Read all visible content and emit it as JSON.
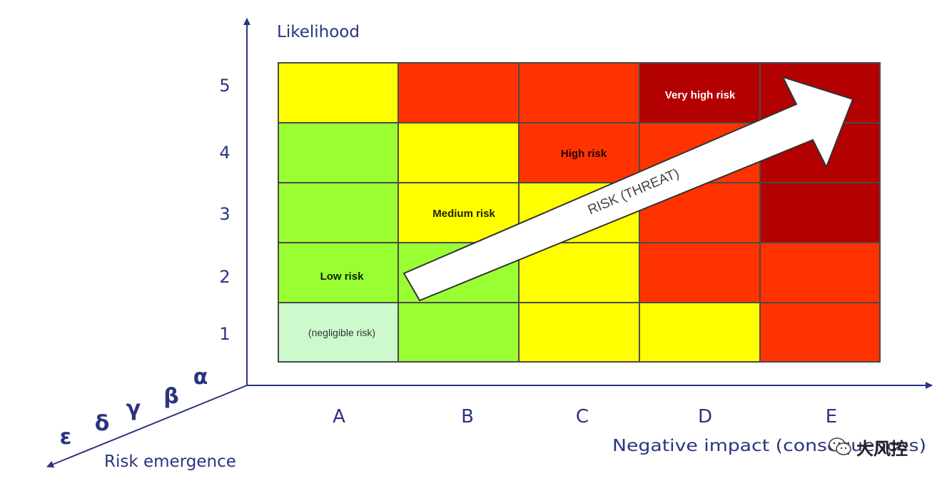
{
  "y_axis": {
    "title": "Likelihood",
    "ticks": [
      "1",
      "2",
      "3",
      "4",
      "5"
    ]
  },
  "x_axis": {
    "title": "Negative impact (consequences)",
    "ticks": [
      "A",
      "B",
      "C",
      "D",
      "E"
    ]
  },
  "z_axis": {
    "title": "Risk emergence",
    "ticks": [
      "α",
      "β",
      "γ",
      "δ",
      "ε"
    ]
  },
  "colors": {
    "negligible": "#cdfacd",
    "low": "#99ff33",
    "medium": "#ffff00",
    "high": "#ff3300",
    "very_high": "#b30000",
    "axis": "#2a3480",
    "grid_border": "#4a4a4a"
  },
  "grid": {
    "rows": [
      {
        "likelihood": "5",
        "cells": [
          "medium",
          "high",
          "high",
          "very_high",
          "very_high"
        ]
      },
      {
        "likelihood": "4",
        "cells": [
          "low",
          "medium",
          "high",
          "high",
          "very_high"
        ]
      },
      {
        "likelihood": "3",
        "cells": [
          "low",
          "medium",
          "medium",
          "high",
          "very_high"
        ]
      },
      {
        "likelihood": "2",
        "cells": [
          "low",
          "low",
          "medium",
          "high",
          "high"
        ]
      },
      {
        "likelihood": "1",
        "cells": [
          "negligible",
          "low",
          "medium",
          "medium",
          "high"
        ]
      }
    ]
  },
  "labels": {
    "very_high": "Very high risk",
    "high": "High risk",
    "medium": "Medium risk",
    "low": "Low risk",
    "negligible": "(negligible risk)"
  },
  "arrow_label": "RISK (THREAT)",
  "watermark": "大风控"
}
